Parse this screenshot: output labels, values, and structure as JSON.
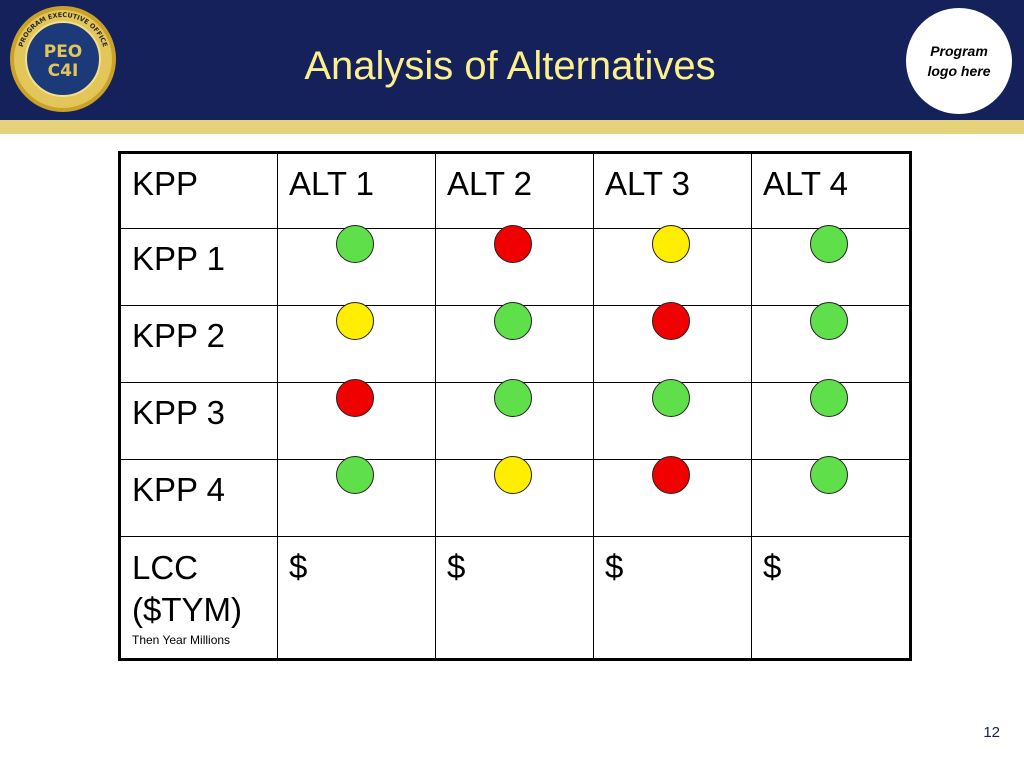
{
  "header": {
    "title": "Analysis of Alternatives",
    "seal_text": "PROGRAM EXECUTIVE OFFICE",
    "seal_line1": "PEO",
    "seal_line2": "C4I",
    "logo_text": "Program logo here",
    "colors": {
      "navy": "#14215a",
      "gold": "#e6d27a",
      "title": "#fbf08c"
    }
  },
  "table": {
    "headers": [
      "KPP",
      "ALT 1",
      "ALT 2",
      "ALT 3",
      "ALT 4"
    ],
    "rows": [
      {
        "label": "KPP 1",
        "ratings": [
          "green",
          "red",
          "yellow",
          "green"
        ]
      },
      {
        "label": "KPP 2",
        "ratings": [
          "yellow",
          "green",
          "red",
          "green"
        ]
      },
      {
        "label": "KPP 3",
        "ratings": [
          "red",
          "green",
          "green",
          "green"
        ]
      },
      {
        "label": "KPP 4",
        "ratings": [
          "green",
          "yellow",
          "red",
          "green"
        ]
      }
    ],
    "lcc": {
      "label_line1": "LCC",
      "label_line2": "($TYM)",
      "sublabel": "Then Year Millions",
      "values": [
        "$",
        "$",
        "$",
        "$"
      ]
    },
    "status_colors": {
      "green": "#5fe04a",
      "red": "#f00000",
      "yellow": "#ffee00"
    }
  },
  "footer": {
    "page_number": "12"
  }
}
